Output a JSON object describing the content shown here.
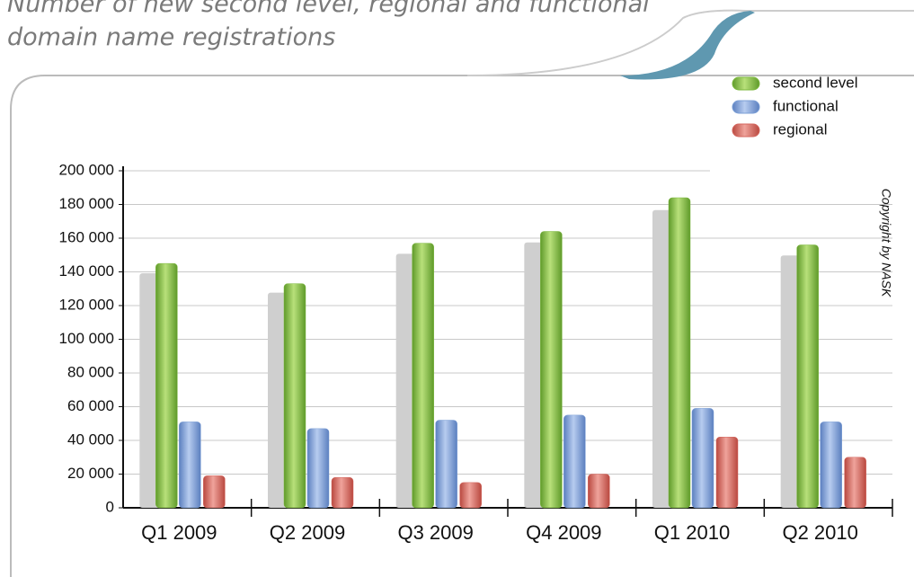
{
  "chart_data": {
    "type": "bar",
    "title": "Number of new second level, regional and functional domain name registrations",
    "annotation": "Copyright by NASK",
    "categories": [
      "Q1 2009",
      "Q2 2009",
      "Q3 2009",
      "Q4 2009",
      "Q1 2010",
      "Q2 2010"
    ],
    "series": [
      {
        "name": "second level",
        "color": "#7cb83e",
        "values": [
          145000,
          133000,
          157000,
          164000,
          184000,
          156000
        ]
      },
      {
        "name": "functional",
        "color": "#7b9fd6",
        "values": [
          51000,
          47000,
          52000,
          55000,
          59000,
          51000
        ]
      },
      {
        "name": "regional",
        "color": "#d4665e",
        "values": [
          19000,
          18000,
          15000,
          20000,
          42000,
          30000
        ]
      }
    ],
    "ylim": [
      0,
      200000
    ],
    "yticks": [
      0,
      {
        "value": 20000,
        "label": "20 000"
      },
      {
        "value": 40000,
        "label": "40 000"
      },
      {
        "value": 60000,
        "label": "60 000"
      },
      {
        "value": 80000,
        "label": "80 000"
      },
      {
        "value": 100000,
        "label": "100 000"
      },
      {
        "value": 120000,
        "label": "120 000"
      },
      {
        "value": 140000,
        "label": "140 000"
      },
      {
        "value": 160000,
        "label": "160 000"
      },
      {
        "value": 180000,
        "label": "180 000"
      },
      {
        "value": 200000,
        "label": "200 000"
      }
    ],
    "grid": true,
    "legend": "top-right"
  }
}
